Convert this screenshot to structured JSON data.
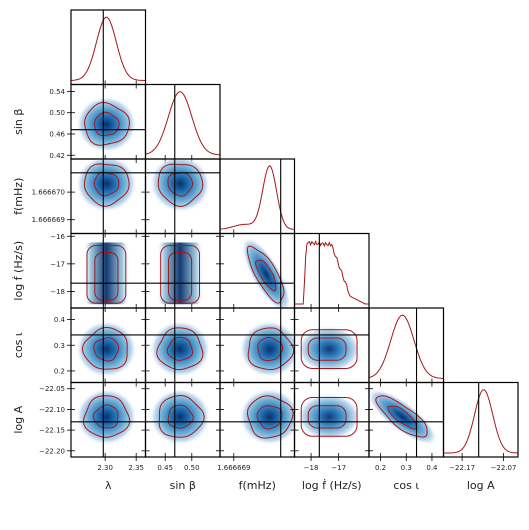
{
  "chart_data": {
    "type": "corner",
    "parameters": [
      {
        "label": "λ",
        "xlabel_text": "λ",
        "ticks": [
          2.3,
          2.35
        ],
        "tick_labels": [
          "2.30",
          "2.35"
        ],
        "range": [
          2.245,
          2.365
        ],
        "truth": 2.297,
        "mean": 2.302,
        "sd": 0.016
      },
      {
        "label": "sin β",
        "xlabel_text": "sin β",
        "ticks": [
          0.45,
          0.5
        ],
        "tick_labels": [
          "0.45",
          "0.50"
        ],
        "range": [
          0.413,
          0.553
        ],
        "truth": 0.468,
        "mean": 0.478,
        "sd": 0.022,
        "ylabel_text": "sin β",
        "yticks": [
          0.42,
          0.46,
          0.5,
          0.54
        ],
        "ytick_labels": [
          "0.42",
          "0.46",
          "0.50",
          "0.54"
        ]
      },
      {
        "label": "f(mHz)",
        "xlabel_text": "f(mHz)",
        "ticks": [
          1.666669
        ],
        "tick_labels": [
          "1.666669"
        ],
        "range": [
          1.6666685,
          1.6666712
        ],
        "truth": 1.6666707,
        "mean": 1.6666703,
        "sd": 2.5e-07,
        "ylabel_text": "f(mHz)",
        "yticks": [
          1.666669,
          1.66667
        ],
        "ytick_labels": [
          "1.666669",
          "1.666670"
        ]
      },
      {
        "label": "log ḟ (Hz/s)",
        "xlabel_text": "log ḟ (Hz/s)",
        "ticks": [
          -18,
          -17
        ],
        "tick_labels": [
          "−18",
          "−17"
        ],
        "range": [
          -18.6,
          -15.9
        ],
        "truth": -17.7,
        "ylabel_text": "log ḟ (Hz/s)",
        "yticks": [
          -18,
          -17,
          -16
        ],
        "ytick_labels": [
          "−18",
          "−17",
          "−16"
        ]
      },
      {
        "label": "cos ι",
        "xlabel_text": "cos ι",
        "ticks": [
          0.2,
          0.3,
          0.4
        ],
        "tick_labels": [
          "0.2",
          "0.3",
          "0.4"
        ],
        "range": [
          0.155,
          0.445
        ],
        "truth": 0.34,
        "mean": 0.285,
        "sd": 0.045,
        "ylabel_text": "cos ι",
        "yticks": [
          0.2,
          0.3,
          0.4
        ],
        "ytick_labels": [
          "0.2",
          "0.3",
          "0.4"
        ]
      },
      {
        "label": "log A",
        "xlabel_text": "log A",
        "ticks": [
          -22.17,
          -22.07
        ],
        "tick_labels": [
          "−22.17",
          "−22.07"
        ],
        "range": [
          -22.215,
          -22.035
        ],
        "truth": -22.13,
        "mean": -22.118,
        "sd": 0.022,
        "ylabel_text": "log A",
        "yticks": [
          -22.2,
          -22.15,
          -22.1,
          -22.05
        ],
        "ytick_labels": [
          "−22.20",
          "−22.15",
          "−22.10",
          "−22.05"
        ]
      }
    ],
    "colors": {
      "contour": "#a3171c",
      "density_dark": "#08306b",
      "truth_line": "#000000",
      "marginal": "#a3171c"
    }
  }
}
